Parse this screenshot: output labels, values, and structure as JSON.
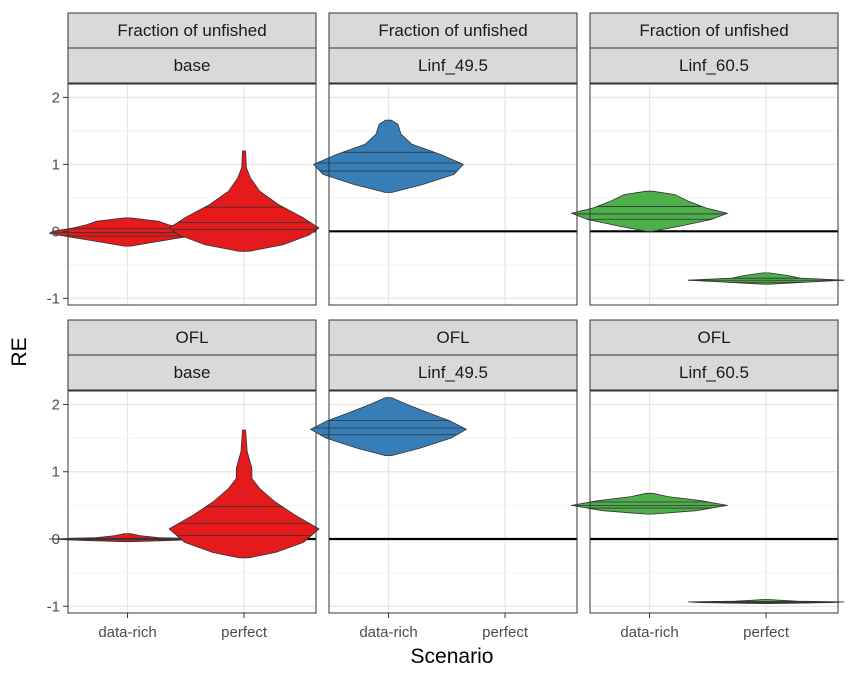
{
  "chart_data": {
    "type": "violin",
    "xlabel": "Scenario",
    "ylabel": "RE",
    "categories": [
      "data-rich",
      "perfect"
    ],
    "y_ticks": [
      -1,
      0,
      1,
      2
    ],
    "y_tick_labels": [
      "-1",
      "0",
      "1",
      "2"
    ],
    "ylim": [
      -1.1,
      2.2
    ],
    "grid": true,
    "reference_line": 0,
    "colors": {
      "base": "#e41a1c",
      "Linf_49.5": "#377eb8",
      "Linf_60.5": "#4daf4a"
    },
    "panels": [
      {
        "row_label": "Fraction of unfished",
        "col_label": "base",
        "color": "#e41a1c",
        "violins": [
          {
            "category": "data-rich",
            "quantiles": [
              -0.07,
              -0.02,
              0.04
            ],
            "profile": [
              [
                -0.22,
                0.02
              ],
              [
                -0.15,
                0.2
              ],
              [
                -0.08,
                0.38
              ],
              [
                -0.03,
                0.5
              ],
              [
                0.0,
                0.48
              ],
              [
                0.05,
                0.35
              ],
              [
                0.1,
                0.26
              ],
              [
                0.15,
                0.2
              ],
              [
                0.2,
                0.02
              ]
            ]
          },
          {
            "category": "perfect",
            "quantiles": [
              0.03,
              0.13,
              0.36
            ],
            "profile": [
              [
                -0.3,
                0.03
              ],
              [
                -0.2,
                0.25
              ],
              [
                -0.05,
                0.42
              ],
              [
                0.05,
                0.48
              ],
              [
                0.2,
                0.38
              ],
              [
                0.4,
                0.22
              ],
              [
                0.6,
                0.1
              ],
              [
                0.8,
                0.04
              ],
              [
                0.95,
                0.015
              ],
              [
                1.2,
                0.01
              ]
            ]
          }
        ]
      },
      {
        "row_label": "Fraction of unfished",
        "col_label": "Linf_49.5",
        "color": "#377eb8",
        "violins": [
          {
            "category": "data-rich",
            "quantiles": [
              0.9,
              1.02,
              1.18
            ],
            "profile": [
              [
                0.58,
                0.02
              ],
              [
                0.7,
                0.22
              ],
              [
                0.85,
                0.42
              ],
              [
                1.0,
                0.48
              ],
              [
                1.15,
                0.33
              ],
              [
                1.3,
                0.15
              ],
              [
                1.45,
                0.08
              ],
              [
                1.6,
                0.06
              ],
              [
                1.66,
                0.02
              ]
            ]
          }
        ]
      },
      {
        "row_label": "Fraction of unfished",
        "col_label": "Linf_60.5",
        "color": "#4daf4a",
        "violins": [
          {
            "category": "data-rich",
            "quantiles": [
              0.18,
              0.26,
              0.37
            ],
            "profile": [
              [
                0.0,
                0.02
              ],
              [
                0.08,
                0.2
              ],
              [
                0.18,
                0.4
              ],
              [
                0.27,
                0.5
              ],
              [
                0.35,
                0.36
              ],
              [
                0.45,
                0.25
              ],
              [
                0.55,
                0.16
              ],
              [
                0.6,
                0.02
              ]
            ]
          },
          {
            "category": "perfect",
            "quantiles": [
              -0.76,
              -0.73,
              -0.7
            ],
            "profile": [
              [
                -0.79,
                0.02
              ],
              [
                -0.76,
                0.25
              ],
              [
                -0.73,
                0.5
              ],
              [
                -0.7,
                0.22
              ],
              [
                -0.66,
                0.14
              ],
              [
                -0.62,
                0.02
              ]
            ]
          }
        ]
      },
      {
        "row_label": "OFL",
        "col_label": "base",
        "color": "#e41a1c",
        "violins": [
          {
            "category": "data-rich",
            "quantiles": [
              -0.01,
              0.0,
              0.01
            ],
            "profile": [
              [
                -0.04,
                0.02
              ],
              [
                -0.02,
                0.3
              ],
              [
                0.0,
                0.5
              ],
              [
                0.02,
                0.2
              ],
              [
                0.05,
                0.08
              ],
              [
                0.08,
                0.02
              ]
            ]
          },
          {
            "category": "perfect",
            "quantiles": [
              0.05,
              0.23,
              0.48
            ],
            "profile": [
              [
                -0.28,
                0.03
              ],
              [
                -0.2,
                0.2
              ],
              [
                -0.05,
                0.38
              ],
              [
                0.15,
                0.48
              ],
              [
                0.35,
                0.33
              ],
              [
                0.55,
                0.2
              ],
              [
                0.75,
                0.1
              ],
              [
                0.9,
                0.05
              ],
              [
                1.05,
                0.05
              ],
              [
                1.3,
                0.02
              ],
              [
                1.62,
                0.01
              ]
            ]
          }
        ]
      },
      {
        "row_label": "OFL",
        "col_label": "Linf_49.5",
        "color": "#377eb8",
        "violins": [
          {
            "category": "data-rich",
            "quantiles": [
              1.55,
              1.65,
              1.76
            ],
            "profile": [
              [
                1.24,
                0.02
              ],
              [
                1.35,
                0.2
              ],
              [
                1.5,
                0.4
              ],
              [
                1.63,
                0.5
              ],
              [
                1.75,
                0.4
              ],
              [
                1.88,
                0.25
              ],
              [
                2.0,
                0.12
              ],
              [
                2.1,
                0.02
              ]
            ]
          }
        ]
      },
      {
        "row_label": "OFL",
        "col_label": "Linf_60.5",
        "color": "#4daf4a",
        "violins": [
          {
            "category": "data-rich",
            "quantiles": [
              0.46,
              0.5,
              0.55
            ],
            "profile": [
              [
                0.37,
                0.02
              ],
              [
                0.42,
                0.3
              ],
              [
                0.5,
                0.5
              ],
              [
                0.57,
                0.33
              ],
              [
                0.63,
                0.12
              ],
              [
                0.68,
                0.02
              ]
            ]
          },
          {
            "category": "perfect",
            "quantiles": [
              -0.95,
              -0.94,
              -0.93
            ],
            "profile": [
              [
                -0.96,
                0.02
              ],
              [
                -0.945,
                0.42
              ],
              [
                -0.935,
                0.5
              ],
              [
                -0.925,
                0.2
              ],
              [
                -0.91,
                0.08
              ],
              [
                -0.9,
                0.02
              ]
            ]
          }
        ]
      }
    ]
  }
}
